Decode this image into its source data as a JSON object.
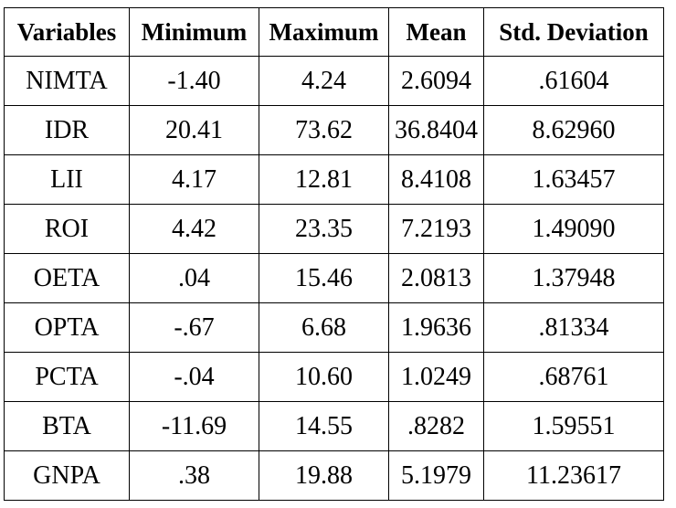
{
  "table": {
    "headers": [
      "Variables",
      "Minimum",
      "Maximum",
      "Mean",
      "Std. Deviation"
    ],
    "rows": [
      [
        "NIMTA",
        "-1.40",
        "4.24",
        "2.6094",
        ".61604"
      ],
      [
        "IDR",
        "20.41",
        "73.62",
        "36.8404",
        "8.62960"
      ],
      [
        "LII",
        "4.17",
        "12.81",
        "8.4108",
        "1.63457"
      ],
      [
        "ROI",
        "4.42",
        "23.35",
        "7.2193",
        "1.49090"
      ],
      [
        "OETA",
        ".04",
        "15.46",
        "2.0813",
        "1.37948"
      ],
      [
        "OPTA",
        "-.67",
        "6.68",
        "1.9636",
        ".81334"
      ],
      [
        "PCTA",
        "-.04",
        "10.60",
        "1.0249",
        ".68761"
      ],
      [
        "BTA",
        "-11.69",
        "14.55",
        ".8282",
        "1.59551"
      ],
      [
        "GNPA",
        ".38",
        "19.88",
        "5.1979",
        "11.23617"
      ]
    ]
  }
}
